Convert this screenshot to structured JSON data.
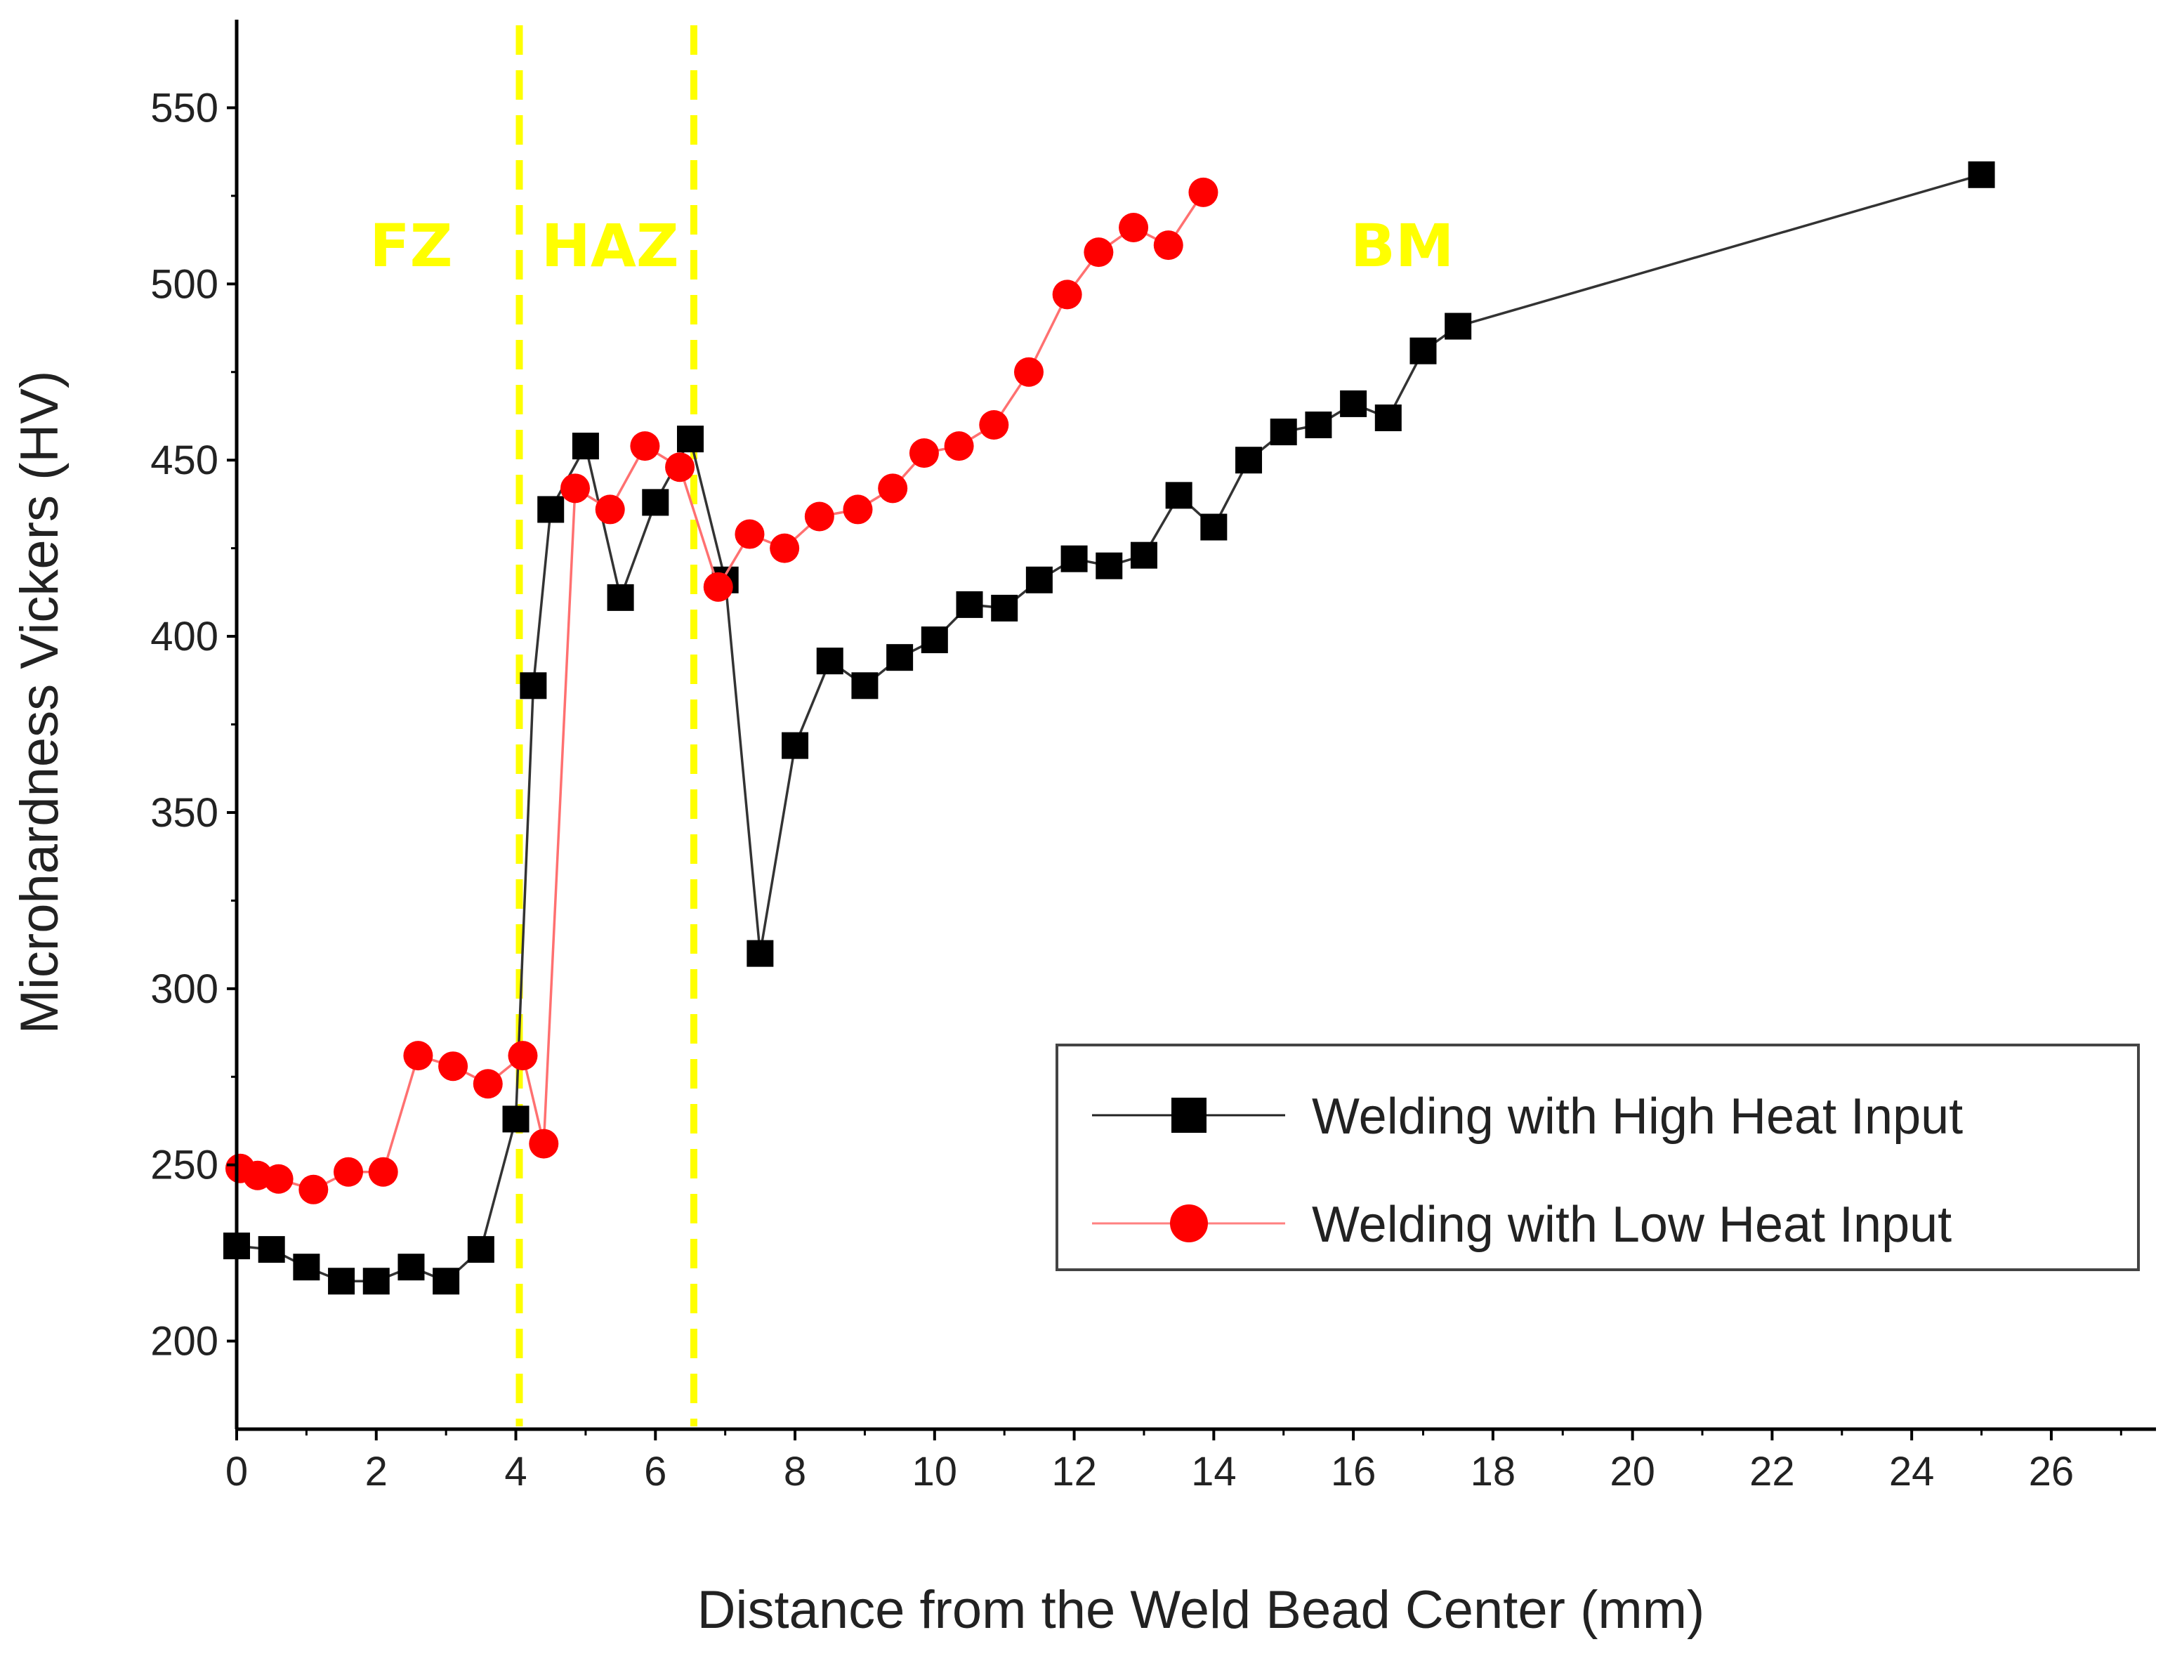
{
  "chart_data": {
    "type": "line",
    "title": "",
    "xlabel": "Distance from the Weld Bead Center (mm)",
    "ylabel": "Microhardness Vickers (HV)",
    "xlim": [
      0,
      27.5
    ],
    "ylim": [
      175,
      575
    ],
    "xticks": [
      0,
      2,
      4,
      6,
      8,
      10,
      12,
      14,
      16,
      18,
      20,
      22,
      24,
      26
    ],
    "yticks": [
      200,
      250,
      300,
      350,
      400,
      450,
      500,
      550
    ],
    "zone_lines": [
      4.05,
      6.55
    ],
    "zone_color": "#ffff00",
    "zones": [
      {
        "label": "FZ",
        "x": 2.5,
        "y": 505
      },
      {
        "label": "HAZ",
        "x": 5.35,
        "y": 505
      },
      {
        "label": "BM",
        "x": 16.7,
        "y": 505
      }
    ],
    "series": [
      {
        "name": "Welding with High Heat Input",
        "color": "#000000",
        "marker": "square",
        "x": [
          0,
          0.5,
          1,
          1.5,
          2,
          2.5,
          3,
          3.5,
          4,
          4.25,
          4.5,
          5,
          5.5,
          6,
          6.5,
          7,
          7.5,
          8,
          8.5,
          9,
          9.5,
          10,
          10.5,
          11,
          11.5,
          12,
          12.5,
          13,
          13.5,
          14,
          14.5,
          15,
          15.5,
          16,
          16.5,
          17,
          17.5,
          25
        ],
        "y": [
          227,
          226,
          221,
          217,
          217,
          221,
          217,
          226,
          263,
          386,
          436,
          454,
          411,
          438,
          456,
          416,
          310,
          369,
          393,
          386,
          394,
          399,
          409,
          408,
          416,
          422,
          420,
          423,
          440,
          431,
          450,
          458,
          460,
          466,
          462,
          481,
          488,
          531
        ]
      },
      {
        "name": "Welding with Low Heat Input",
        "color": "#ff0000",
        "marker": "circle",
        "x": [
          0.05,
          0.3,
          0.6,
          1.1,
          1.6,
          2.1,
          2.6,
          3.1,
          3.6,
          4.1,
          4.4,
          4.85,
          5.35,
          5.85,
          6.35,
          6.9,
          7.35,
          7.85,
          8.35,
          8.9,
          9.4,
          9.85,
          10.35,
          10.85,
          11.35,
          11.9,
          12.35,
          12.85,
          13.35,
          13.85
        ],
        "y": [
          249,
          247,
          246,
          243,
          248,
          248,
          281,
          278,
          273,
          281,
          256,
          442,
          436,
          454,
          448,
          414,
          429,
          425,
          434,
          436,
          442,
          452,
          454,
          460,
          475,
          497,
          509,
          516,
          511,
          526
        ]
      }
    ],
    "legend": {
      "position": "bottom-right",
      "entries": [
        "Welding with High Heat Input",
        "Welding with Low Heat Input"
      ]
    }
  }
}
